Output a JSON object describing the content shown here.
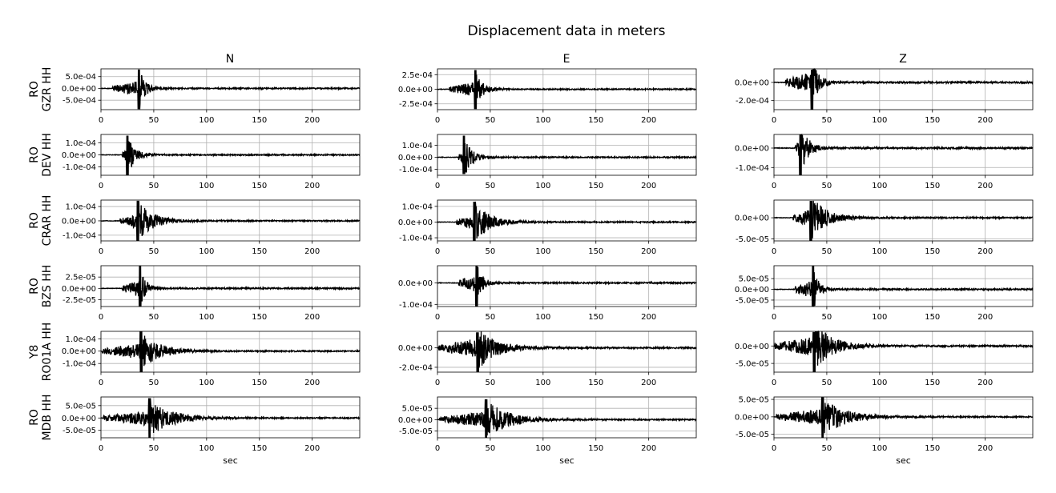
{
  "title": "Displacement data in meters",
  "columns": [
    "N",
    "E",
    "Z"
  ],
  "xlabel": "sec",
  "chart_data": {
    "type": "line",
    "layout": "6 rows x 3 columns of waveform panels",
    "title": "Displacement data in meters",
    "xlabel": "sec",
    "xlim": [
      0,
      245
    ],
    "xticks": [
      0,
      50,
      100,
      150,
      200
    ],
    "grid": true,
    "line_color": "#000000",
    "stations": [
      {
        "network": "RO",
        "name": "GZR HH",
        "onset": 11,
        "peak": 36,
        "decay": 6,
        "panels": [
          {
            "component": "N",
            "ylim": [
              -0.0009,
              0.00083
            ],
            "yticks": [
              -0.0005,
              0,
              0.0005
            ],
            "ytick_labels": [
              "-5.0e-04",
              "0.0e+00",
              "5.0e-04"
            ],
            "max": 0.0008,
            "min": -0.00088
          },
          {
            "component": "E",
            "ylim": [
              -0.00035,
              0.00035
            ],
            "yticks": [
              -0.00025,
              0,
              0.00025
            ],
            "ytick_labels": [
              "-2.5e-04",
              "0.0e+00",
              "2.5e-04"
            ],
            "max": 0.00033,
            "min": -0.00034
          },
          {
            "component": "Z",
            "ylim": [
              -0.0003,
              0.00015
            ],
            "yticks": [
              -0.0002,
              0
            ],
            "ytick_labels": [
              "-2.0e-04",
              "0.0e+00"
            ],
            "max": 0.00014,
            "min": -0.0003
          }
        ]
      },
      {
        "network": "RO",
        "name": "DEV HH",
        "onset": 20,
        "peak": 25,
        "decay": 7,
        "panels": [
          {
            "component": "N",
            "ylim": [
              -0.00017,
              0.00017
            ],
            "yticks": [
              -0.0001,
              0,
              0.0001
            ],
            "ytick_labels": [
              "-1.0e-04",
              "0.0e+00",
              "1.0e-04"
            ],
            "max": 0.00016,
            "min": -0.00017
          },
          {
            "component": "E",
            "ylim": [
              -0.00015,
              0.00019
            ],
            "yticks": [
              -0.0001,
              0,
              0.0001
            ],
            "ytick_labels": [
              "-1.0e-04",
              "0.0e+00",
              "1.0e-04"
            ],
            "max": 0.00018,
            "min": -0.00014
          },
          {
            "component": "Z",
            "ylim": [
              -0.00014,
              7e-05
            ],
            "yticks": [
              -0.0001,
              0
            ],
            "ytick_labels": [
              "-1.0e-04",
              "0.0e+00"
            ],
            "max": 7e-05,
            "min": -0.00014
          }
        ]
      },
      {
        "network": "RO",
        "name": "CRAR HH",
        "onset": 18,
        "peak": 35,
        "decay": 14,
        "panels": [
          {
            "component": "N",
            "ylim": [
              -0.00014,
              0.000145
            ],
            "yticks": [
              -0.0001,
              0,
              0.0001
            ],
            "ytick_labels": [
              "-1.0e-04",
              "0.0e+00",
              "1.0e-04"
            ],
            "max": 0.00014,
            "min": -0.00014
          },
          {
            "component": "E",
            "ylim": [
              -0.00012,
              0.00014
            ],
            "yticks": [
              -0.0001,
              0,
              0.0001
            ],
            "ytick_labels": [
              "-1.0e-04",
              "0.0e+00",
              "1.0e-04"
            ],
            "max": 0.00013,
            "min": -0.00012
          },
          {
            "component": "Z",
            "ylim": [
              -5.5e-05,
              4.2e-05
            ],
            "yticks": [
              -5e-05,
              0
            ],
            "ytick_labels": [
              "-5.0e-05",
              "0.0e+00"
            ],
            "max": 4e-05,
            "min": -5.5e-05
          }
        ]
      },
      {
        "network": "RO",
        "name": "BZS HH",
        "onset": 20,
        "peak": 37,
        "decay": 5,
        "panels": [
          {
            "component": "N",
            "ylim": [
              -4e-05,
              5e-05
            ],
            "yticks": [
              -2.5e-05,
              0,
              2.5e-05
            ],
            "ytick_labels": [
              "-2.5e-05",
              "0.0e+00",
              "2.5e-05"
            ],
            "max": 5e-05,
            "min": -4e-05
          },
          {
            "component": "E",
            "ylim": [
              -0.00011,
              8e-05
            ],
            "yticks": [
              -0.0001,
              0
            ],
            "ytick_labels": [
              "-1.0e-04",
              "0.0e+00"
            ],
            "max": 8e-05,
            "min": -0.00011
          },
          {
            "component": "Z",
            "ylim": [
              -8e-05,
              0.00011
            ],
            "yticks": [
              -5e-05,
              0,
              5e-05
            ],
            "ytick_labels": [
              "-5.0e-05",
              "0.0e+00",
              "5.0e-05"
            ],
            "max": 0.00011,
            "min": -8e-05
          }
        ]
      },
      {
        "network": "Y8",
        "name": "RO01A HH",
        "onset": 1,
        "peak": 38,
        "decay": 16,
        "panels": [
          {
            "component": "N",
            "ylim": [
              -0.00017,
              0.00016
            ],
            "yticks": [
              -0.0001,
              0,
              0.0001
            ],
            "ytick_labels": [
              "-1.0e-04",
              "0.0e+00",
              "1.0e-04"
            ],
            "max": 0.00016,
            "min": -0.00017
          },
          {
            "component": "E",
            "ylim": [
              -0.00025,
              0.00017
            ],
            "yticks": [
              -0.0002,
              0
            ],
            "ytick_labels": [
              "-2.0e-04",
              "0.0e+00"
            ],
            "max": 0.00016,
            "min": -0.00025
          },
          {
            "component": "Z",
            "ylim": [
              -7.5e-05,
              4.2e-05
            ],
            "yticks": [
              -5e-05,
              0
            ],
            "ytick_labels": [
              "-5.0e-05",
              "0.0e+00"
            ],
            "max": 4e-05,
            "min": -7.5e-05
          }
        ]
      },
      {
        "network": "RO",
        "name": "MDB HH",
        "onset": 2,
        "peak": 46,
        "decay": 20,
        "panels": [
          {
            "component": "N",
            "ylim": [
              -8e-05,
              8.5e-05
            ],
            "yticks": [
              -5e-05,
              0,
              5e-05
            ],
            "ytick_labels": [
              "-5.0e-05",
              "0.0e+00",
              "5.0e-05"
            ],
            "max": 8e-05,
            "min": -8e-05
          },
          {
            "component": "E",
            "ylim": [
              -8e-05,
              0.0001
            ],
            "yticks": [
              -5e-05,
              0,
              5e-05
            ],
            "ytick_labels": [
              "-5.0e-05",
              "0.0e+00",
              "5.0e-05"
            ],
            "max": 9e-05,
            "min": -8e-05
          },
          {
            "component": "Z",
            "ylim": [
              -6e-05,
              5.7e-05
            ],
            "yticks": [
              -5e-05,
              0,
              5e-05
            ],
            "ytick_labels": [
              "-5.0e-05",
              "0.0e+00",
              "5.0e-05"
            ],
            "max": 5.6e-05,
            "min": -6e-05
          }
        ]
      }
    ]
  }
}
